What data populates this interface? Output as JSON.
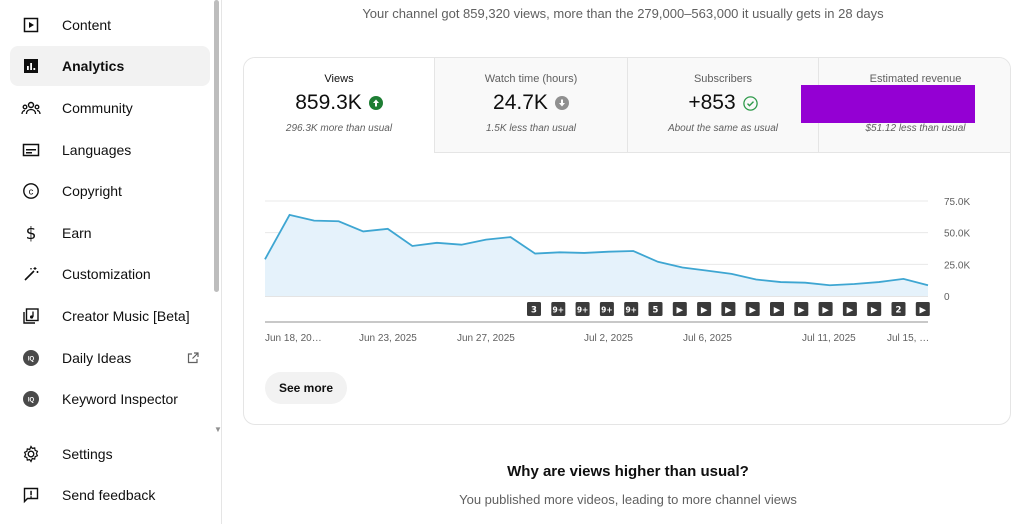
{
  "sidebar": {
    "items": [
      {
        "label": "Content",
        "icon": "content-icon"
      },
      {
        "label": "Analytics",
        "icon": "analytics-icon",
        "active": true
      },
      {
        "label": "Community",
        "icon": "community-icon"
      },
      {
        "label": "Languages",
        "icon": "languages-icon"
      },
      {
        "label": "Copyright",
        "icon": "copyright-icon"
      },
      {
        "label": "Earn",
        "icon": "earn-icon"
      },
      {
        "label": "Customization",
        "icon": "customization-icon"
      },
      {
        "label": "Creator Music [Beta]",
        "icon": "creator-music-icon"
      },
      {
        "label": "Daily Ideas",
        "icon": "daily-ideas-icon",
        "external": true
      },
      {
        "label": "Keyword Inspector",
        "icon": "keyword-inspector-icon"
      },
      {
        "label": "Settings",
        "icon": "settings-icon"
      },
      {
        "label": "Send feedback",
        "icon": "feedback-icon"
      }
    ]
  },
  "headline": "Your channel got 859,320 views, more than the 279,000–563,000 it usually gets in 28 days",
  "tabs": [
    {
      "label": "Views",
      "value": "859.3K",
      "status": "up",
      "sub": "296.3K more than usual"
    },
    {
      "label": "Watch time (hours)",
      "value": "24.7K",
      "status": "down",
      "sub": "1.5K less than usual"
    },
    {
      "label": "Subscribers",
      "value": "+853",
      "status": "same",
      "sub": "About the same as usual"
    },
    {
      "label": "Estimated revenue",
      "value": "",
      "status": "redacted",
      "sub": "$51.12 less than usual"
    }
  ],
  "colors": {
    "line": "#3ea6d2",
    "fill": "#e5f2fb",
    "up": "#1e7e34",
    "down": "#909090",
    "same": "#2e9a4a",
    "redaction": "#9400d3"
  },
  "chart_data": {
    "type": "area",
    "y_ticks": [
      "75.0K",
      "50.0K",
      "25.0K",
      "0"
    ],
    "ylim": [
      0,
      75000
    ],
    "values": [
      29000,
      64000,
      59500,
      59000,
      51000,
      53000,
      39500,
      42000,
      40500,
      44500,
      46500,
      33500,
      34500,
      34000,
      35000,
      35500,
      27000,
      22500,
      20000,
      17500,
      13000,
      11000,
      10500,
      8500,
      9500,
      11000,
      13500,
      8500
    ],
    "x_ticks": [
      "Jun 18, 20…",
      "Jun 23, 2025",
      "Jun 27, 2025",
      "Jul 2, 2025",
      "Jul 6, 2025",
      "Jul 11, 2025",
      "Jul 15, …"
    ],
    "markers": [
      "3",
      "9+",
      "9+",
      "9+",
      "9+",
      "5",
      "▶",
      "▶",
      "▶",
      "▶",
      "▶",
      "▶",
      "▶",
      "▶",
      "▶",
      "2",
      "▶"
    ]
  },
  "see_more_label": "See more",
  "why": {
    "title": "Why are views higher than usual?",
    "subtitle": "You published more videos, leading to more channel views"
  }
}
